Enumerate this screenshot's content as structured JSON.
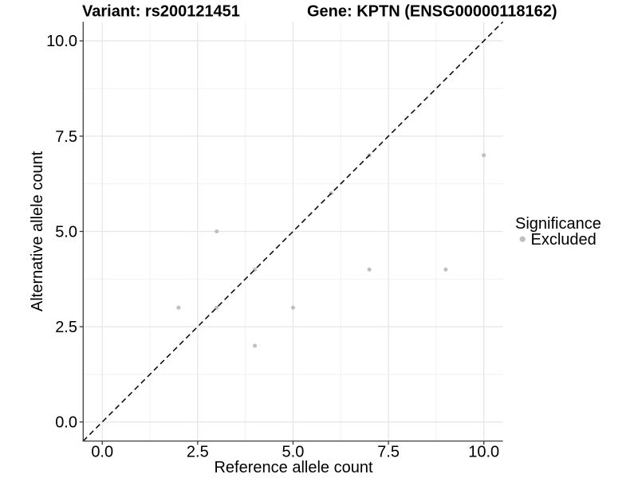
{
  "chart_data": {
    "type": "scatter",
    "title_left": "Variant: rs200121451",
    "title_right": "Gene: KPTN (ENSG00000118162)",
    "xlabel": "Reference allele count",
    "ylabel": "Alternative allele count",
    "xlim": [
      -0.5,
      10.5
    ],
    "ylim": [
      -0.5,
      10.5
    ],
    "x_tick_values": [
      0,
      2.5,
      5,
      7.5,
      10
    ],
    "x_tick_labels": [
      "0.0",
      "2.5",
      "5.0",
      "7.5",
      "10.0"
    ],
    "y_tick_values": [
      0,
      2.5,
      5,
      7.5,
      10
    ],
    "y_tick_labels": [
      "0.0",
      "2.5",
      "5.0",
      "7.5",
      "10.0"
    ],
    "x_minor_ticks": [
      1.25,
      3.75,
      6.25,
      8.75
    ],
    "y_minor_ticks": [
      1.25,
      3.75,
      6.25,
      8.75
    ],
    "grid": "major+minor",
    "series": [
      {
        "name": "Excluded",
        "color": "#bfbfbf",
        "points": [
          [
            2,
            3
          ],
          [
            3,
            3
          ],
          [
            3,
            5
          ],
          [
            4,
            2
          ],
          [
            4,
            4
          ],
          [
            5,
            3
          ],
          [
            6,
            6
          ],
          [
            7,
            4
          ],
          [
            7,
            7
          ],
          [
            9,
            4
          ],
          [
            10,
            7
          ]
        ]
      }
    ],
    "reference_line": {
      "kind": "identity",
      "linetype": "dashed",
      "color": "#000000"
    }
  },
  "legend": {
    "title": "Significance",
    "position": "right",
    "items": [
      {
        "label": "Excluded",
        "swatch_color": "#bfbfbf"
      }
    ]
  },
  "style": {
    "background": "#ffffff",
    "axis_color": "#3c3c3c",
    "grid_major_color": "#e6e6e6",
    "grid_minor_color": "#f1f1f1",
    "point_color": "#bfbfbf",
    "text_color": "#000000"
  }
}
